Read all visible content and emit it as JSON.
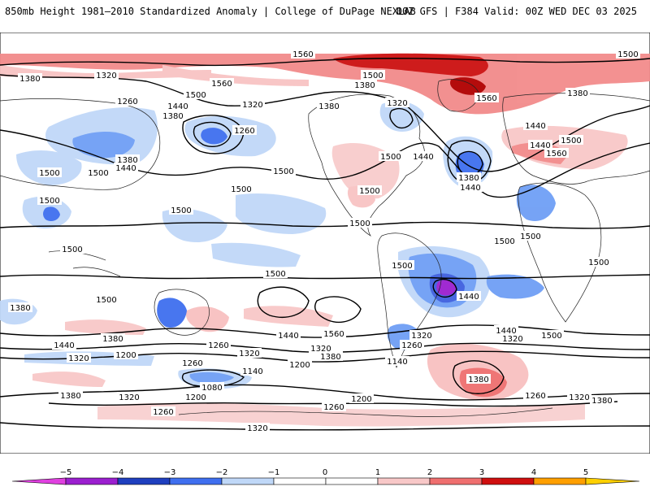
{
  "header": {
    "title_left": "850mb Height 1981–2010 Standardized Anomaly | College of DuPage NEXLAB",
    "title_right": "00Z GFS | F384 Valid: 00Z WED DEC 03 2025"
  },
  "map": {
    "name": "global-850mb-height-anomaly",
    "contour_labels": [
      {
        "id": "c1",
        "text": "1560"
      },
      {
        "id": "c2",
        "text": "1500"
      },
      {
        "id": "c3",
        "text": "1380"
      },
      {
        "id": "c4",
        "text": "1320"
      },
      {
        "id": "c5",
        "text": "1560"
      },
      {
        "id": "c6",
        "text": "1500"
      },
      {
        "id": "c7",
        "text": "1260"
      },
      {
        "id": "c8",
        "text": "1440"
      },
      {
        "id": "c9",
        "text": "1380"
      },
      {
        "id": "c10",
        "text": "1320"
      },
      {
        "id": "c11",
        "text": "1380"
      },
      {
        "id": "c12",
        "text": "1260"
      },
      {
        "id": "c13",
        "text": "1500"
      },
      {
        "id": "c14",
        "text": "1380"
      },
      {
        "id": "c15",
        "text": "1320"
      },
      {
        "id": "c16",
        "text": "1440"
      },
      {
        "id": "c17",
        "text": "1560"
      },
      {
        "id": "c18",
        "text": "1500"
      },
      {
        "id": "c19",
        "text": "1380"
      },
      {
        "id": "c20",
        "text": "1440"
      },
      {
        "id": "c21",
        "text": "1500"
      },
      {
        "id": "c22",
        "text": "1380"
      },
      {
        "id": "c23",
        "text": "1440"
      },
      {
        "id": "c24",
        "text": "1560"
      },
      {
        "id": "c25",
        "text": "1500"
      },
      {
        "id": "c26",
        "text": "1440"
      },
      {
        "id": "c27",
        "text": "1500"
      },
      {
        "id": "c28",
        "text": "1500"
      },
      {
        "id": "c29",
        "text": "1380"
      },
      {
        "id": "c30",
        "text": "1440"
      },
      {
        "id": "c31",
        "text": "1500"
      },
      {
        "id": "c32",
        "text": "1560"
      },
      {
        "id": "c33",
        "text": "1500"
      },
      {
        "id": "c34",
        "text": "1500"
      },
      {
        "id": "c35",
        "text": "1500"
      },
      {
        "id": "c36",
        "text": "1500"
      },
      {
        "id": "c37",
        "text": "1500"
      },
      {
        "id": "c38",
        "text": "1500"
      },
      {
        "id": "c39",
        "text": "1500"
      },
      {
        "id": "c40",
        "text": "1500"
      },
      {
        "id": "c41",
        "text": "1500"
      },
      {
        "id": "c42",
        "text": "1500"
      },
      {
        "id": "c43",
        "text": "1440"
      },
      {
        "id": "c44",
        "text": "1500"
      },
      {
        "id": "c45",
        "text": "1380"
      },
      {
        "id": "c46",
        "text": "1440"
      },
      {
        "id": "c47",
        "text": "1560"
      },
      {
        "id": "c48",
        "text": "1440"
      },
      {
        "id": "c49",
        "text": "1380"
      },
      {
        "id": "c50",
        "text": "1320"
      },
      {
        "id": "c51",
        "text": "1260"
      },
      {
        "id": "c52",
        "text": "1200"
      },
      {
        "id": "c53",
        "text": "1320"
      },
      {
        "id": "c54",
        "text": "1260"
      },
      {
        "id": "c55",
        "text": "1140"
      },
      {
        "id": "c56",
        "text": "1080"
      },
      {
        "id": "c57",
        "text": "1200"
      },
      {
        "id": "c58",
        "text": "1320"
      },
      {
        "id": "c59",
        "text": "1380"
      },
      {
        "id": "c60",
        "text": "1200"
      },
      {
        "id": "c61",
        "text": "1320"
      },
      {
        "id": "c62",
        "text": "1260"
      },
      {
        "id": "c63",
        "text": "1380"
      },
      {
        "id": "c64",
        "text": "1320"
      },
      {
        "id": "c65",
        "text": "1200"
      },
      {
        "id": "c66",
        "text": "1260"
      },
      {
        "id": "c67",
        "text": "1140"
      },
      {
        "id": "c68",
        "text": "1380"
      },
      {
        "id": "c69",
        "text": "1320"
      },
      {
        "id": "c70",
        "text": "1260"
      },
      {
        "id": "c71",
        "text": "1320"
      },
      {
        "id": "c72",
        "text": "1380"
      },
      {
        "id": "c73",
        "text": "1320"
      },
      {
        "id": "c74",
        "text": "1260"
      },
      {
        "id": "c75",
        "text": "1200"
      },
      {
        "id": "c76",
        "text": "1500"
      },
      {
        "id": "c77",
        "text": "1440"
      },
      {
        "id": "c78",
        "text": "1500"
      },
      {
        "id": "c79",
        "text": "1440"
      }
    ]
  },
  "colorbar": {
    "ticks": [
      "−5",
      "−4",
      "−3",
      "−2",
      "−1",
      "0",
      "1",
      "2",
      "3",
      "4",
      "5"
    ],
    "colors": [
      "#e040e0",
      "#9b1fcf",
      "#1f3fbf",
      "#3f6fef",
      "#c0d8f8",
      "#ffffff",
      "#ffffff",
      "#f8c8c8",
      "#ef6f6f",
      "#cf0f0f",
      "#ff9f00",
      "#ffd000"
    ]
  }
}
